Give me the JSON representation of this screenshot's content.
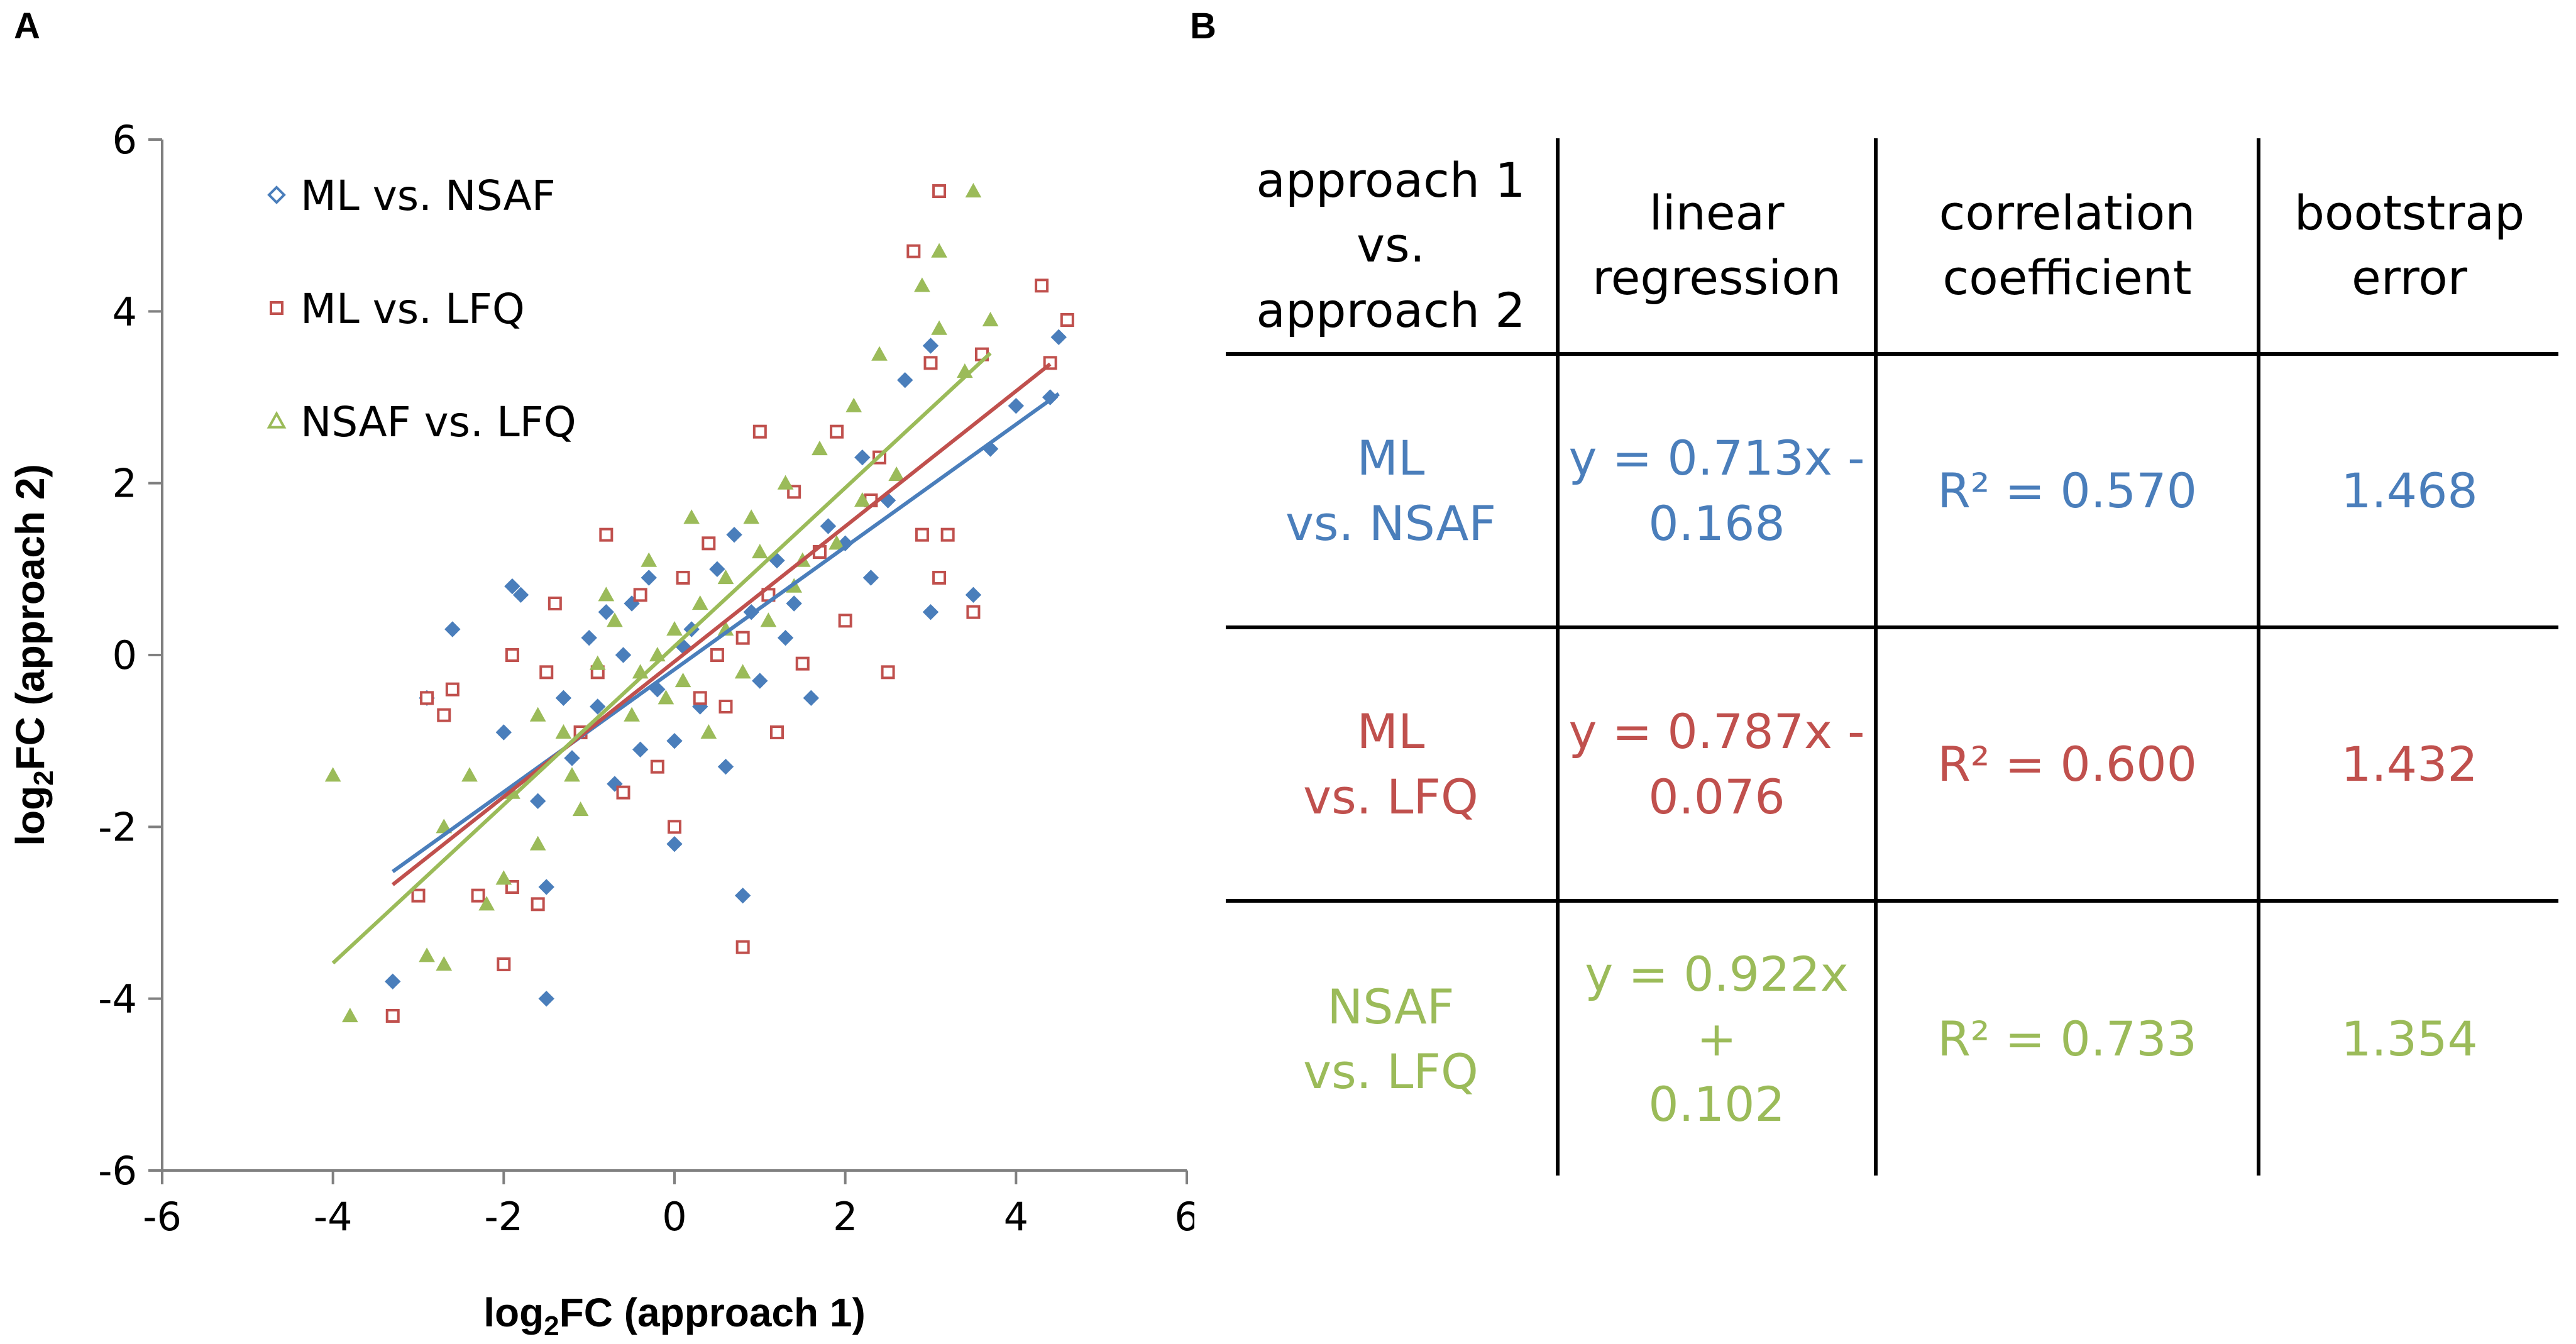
{
  "panel_a_label": "A",
  "panel_b_label": "B",
  "colors": {
    "blue": "#4a7ebb",
    "red": "#c0504d",
    "green": "#9bbb59",
    "axis": "#808080"
  },
  "chart_data": {
    "type": "scatter",
    "title": "",
    "xlabel": {
      "prefix": "log",
      "sub": "2",
      "suffix": "FC (approach 1)"
    },
    "ylabel": {
      "prefix": "log",
      "sub": "2",
      "suffix": "FC (approach 2)"
    },
    "xlim": [
      -6,
      6
    ],
    "ylim": [
      -6,
      6
    ],
    "xticks": [
      -6,
      -4,
      -2,
      0,
      2,
      4,
      6
    ],
    "yticks": [
      -6,
      -4,
      -2,
      0,
      2,
      4,
      6
    ],
    "grid": false,
    "legend_position": "top-left",
    "series": [
      {
        "name": "ML vs. NSAF",
        "marker": "diamond-filled",
        "color": "#4a7ebb",
        "trendline": {
          "slope": 0.713,
          "intercept": -0.168,
          "x_range": [
            -3.3,
            4.5
          ]
        },
        "points": [
          [
            -3.3,
            -3.8
          ],
          [
            -2.6,
            0.3
          ],
          [
            -2.9,
            -0.5
          ],
          [
            -1.9,
            0.8
          ],
          [
            -1.8,
            0.7
          ],
          [
            -2.0,
            -0.9
          ],
          [
            -1.5,
            -4.0
          ],
          [
            -1.5,
            -2.7
          ],
          [
            -1.6,
            -1.7
          ],
          [
            -1.0,
            0.2
          ],
          [
            -1.2,
            -1.2
          ],
          [
            -0.9,
            -0.6
          ],
          [
            -0.8,
            0.5
          ],
          [
            -0.7,
            -1.5
          ],
          [
            -0.5,
            0.6
          ],
          [
            -0.4,
            -1.1
          ],
          [
            -0.3,
            0.9
          ],
          [
            -0.2,
            -0.4
          ],
          [
            0.0,
            -2.2
          ],
          [
            0.0,
            -1.0
          ],
          [
            0.2,
            0.3
          ],
          [
            0.3,
            -0.6
          ],
          [
            0.5,
            1.0
          ],
          [
            0.6,
            -1.3
          ],
          [
            0.8,
            -2.8
          ],
          [
            0.9,
            0.5
          ],
          [
            1.0,
            -0.3
          ],
          [
            1.2,
            1.1
          ],
          [
            1.4,
            0.6
          ],
          [
            1.6,
            -0.5
          ],
          [
            1.8,
            1.5
          ],
          [
            2.0,
            1.3
          ],
          [
            2.2,
            2.3
          ],
          [
            2.5,
            1.8
          ],
          [
            2.7,
            3.2
          ],
          [
            3.0,
            0.5
          ],
          [
            3.0,
            3.6
          ],
          [
            3.5,
            0.7
          ],
          [
            3.7,
            2.4
          ],
          [
            4.0,
            2.9
          ],
          [
            4.4,
            3.0
          ],
          [
            4.5,
            3.7
          ],
          [
            -0.6,
            0.0
          ],
          [
            0.1,
            0.1
          ],
          [
            -1.3,
            -0.5
          ],
          [
            1.3,
            0.2
          ],
          [
            2.3,
            0.9
          ],
          [
            0.7,
            1.4
          ]
        ]
      },
      {
        "name": "ML vs. LFQ",
        "marker": "square-open",
        "color": "#c0504d",
        "trendline": {
          "slope": 0.787,
          "intercept": -0.076,
          "x_range": [
            -3.3,
            4.4
          ]
        },
        "points": [
          [
            -3.3,
            -4.2
          ],
          [
            -3.0,
            -2.8
          ],
          [
            -2.9,
            -0.5
          ],
          [
            -2.7,
            -0.7
          ],
          [
            -2.6,
            -0.4
          ],
          [
            -2.0,
            -3.6
          ],
          [
            -1.9,
            -2.7
          ],
          [
            -1.6,
            -2.9
          ],
          [
            -1.9,
            0.0
          ],
          [
            -1.5,
            -0.2
          ],
          [
            -0.8,
            1.4
          ],
          [
            -1.1,
            -0.9
          ],
          [
            -0.6,
            -1.6
          ],
          [
            -0.4,
            0.7
          ],
          [
            -0.2,
            -1.3
          ],
          [
            0.0,
            -2.0
          ],
          [
            0.1,
            0.9
          ],
          [
            0.3,
            -0.5
          ],
          [
            0.4,
            1.3
          ],
          [
            0.6,
            -0.6
          ],
          [
            0.8,
            -3.4
          ],
          [
            0.8,
            0.2
          ],
          [
            1.0,
            2.6
          ],
          [
            1.1,
            0.7
          ],
          [
            1.4,
            1.9
          ],
          [
            1.5,
            -0.1
          ],
          [
            1.7,
            1.2
          ],
          [
            1.9,
            2.6
          ],
          [
            2.0,
            0.4
          ],
          [
            2.3,
            1.8
          ],
          [
            2.4,
            2.3
          ],
          [
            2.8,
            4.7
          ],
          [
            2.9,
            1.4
          ],
          [
            3.0,
            3.4
          ],
          [
            3.1,
            5.4
          ],
          [
            3.1,
            0.9
          ],
          [
            3.2,
            1.4
          ],
          [
            3.5,
            0.5
          ],
          [
            3.6,
            3.5
          ],
          [
            4.3,
            4.3
          ],
          [
            4.4,
            3.4
          ],
          [
            4.6,
            3.9
          ],
          [
            -1.4,
            0.6
          ],
          [
            0.5,
            0.0
          ],
          [
            1.2,
            -0.9
          ],
          [
            -0.9,
            -0.2
          ],
          [
            2.5,
            -0.2
          ],
          [
            -2.3,
            -2.8
          ]
        ]
      },
      {
        "name": "NSAF vs. LFQ",
        "marker": "triangle-filled",
        "color": "#9bbb59",
        "trendline": {
          "slope": 0.922,
          "intercept": 0.102,
          "x_range": [
            -4.0,
            3.7
          ]
        },
        "points": [
          [
            -4.0,
            -1.4
          ],
          [
            -3.8,
            -4.2
          ],
          [
            -2.9,
            -3.5
          ],
          [
            -2.7,
            -3.6
          ],
          [
            -2.7,
            -2.0
          ],
          [
            -2.4,
            -1.4
          ],
          [
            -2.0,
            -2.6
          ],
          [
            -1.9,
            -1.6
          ],
          [
            -1.6,
            -2.2
          ],
          [
            -1.3,
            -0.9
          ],
          [
            -1.1,
            -1.8
          ],
          [
            -0.9,
            -0.1
          ],
          [
            -0.7,
            0.4
          ],
          [
            -0.5,
            -0.7
          ],
          [
            -0.3,
            1.1
          ],
          [
            -0.1,
            -0.5
          ],
          [
            0.0,
            0.3
          ],
          [
            0.2,
            1.6
          ],
          [
            0.4,
            -0.9
          ],
          [
            0.6,
            0.9
          ],
          [
            0.8,
            -0.2
          ],
          [
            0.9,
            1.6
          ],
          [
            1.1,
            0.4
          ],
          [
            1.3,
            2.0
          ],
          [
            1.5,
            1.1
          ],
          [
            1.7,
            2.4
          ],
          [
            1.9,
            1.3
          ],
          [
            2.1,
            2.9
          ],
          [
            2.4,
            3.5
          ],
          [
            2.6,
            2.1
          ],
          [
            2.9,
            4.3
          ],
          [
            3.1,
            3.8
          ],
          [
            3.1,
            4.7
          ],
          [
            3.4,
            3.3
          ],
          [
            3.5,
            5.4
          ],
          [
            3.7,
            3.9
          ],
          [
            -2.2,
            -2.9
          ],
          [
            -0.4,
            -0.2
          ],
          [
            0.1,
            -0.3
          ],
          [
            0.6,
            0.3
          ],
          [
            1.4,
            0.8
          ],
          [
            -1.6,
            -0.7
          ],
          [
            2.2,
            1.8
          ],
          [
            -0.8,
            0.7
          ],
          [
            0.3,
            0.6
          ],
          [
            1.0,
            1.2
          ],
          [
            -1.2,
            -1.4
          ],
          [
            -0.2,
            0.0
          ]
        ]
      }
    ]
  },
  "table": {
    "headers": [
      "approach 1\nvs.\napproach 2",
      "linear\nregression",
      "correlation\ncoefficient",
      "bootstrap\nerror"
    ],
    "rows": [
      {
        "color": "#4a7ebb",
        "comparison": "ML\nvs. NSAF",
        "regression": "y = 0.713x -\n0.168",
        "correlation": "R² = 0.570",
        "error": "1.468"
      },
      {
        "color": "#c0504d",
        "comparison": "ML\nvs. LFQ",
        "regression": "y = 0.787x -\n0.076",
        "correlation": "R² = 0.600",
        "error": "1.432"
      },
      {
        "color": "#9bbb59",
        "comparison": "NSAF\nvs. LFQ",
        "regression": "y = 0.922x +\n0.102",
        "correlation": "R² = 0.733",
        "error": "1.354"
      }
    ]
  }
}
